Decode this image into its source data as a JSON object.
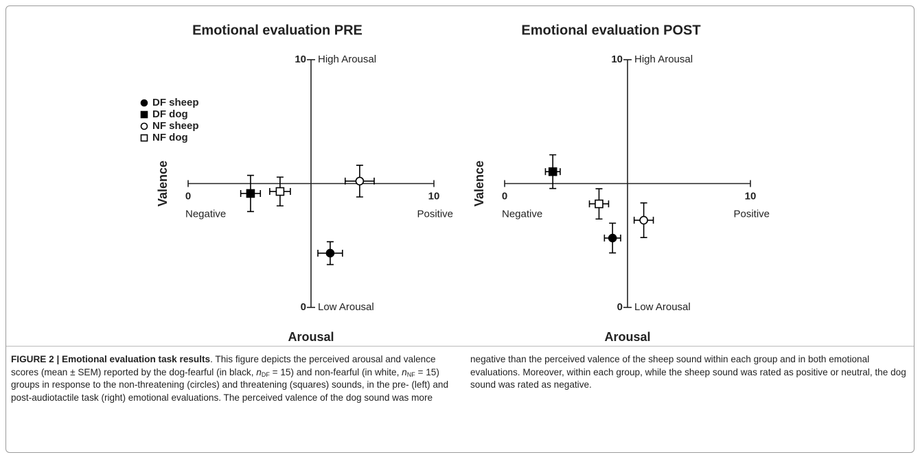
{
  "chart_data": [
    {
      "type": "scatter",
      "title": "Emotional evaluation PRE",
      "xlabel": "Valence",
      "ylabel": "Arousal",
      "x_low_label": "Negative",
      "x_high_label": "Positive",
      "y_high_label": "High Arousal",
      "y_low_label": "Low Arousal",
      "xlim": [
        0,
        10
      ],
      "xticks": [
        0,
        10
      ],
      "ylim": [
        0,
        10
      ],
      "yticks": [
        0,
        10
      ],
      "legend": "upper left",
      "series": [
        {
          "name": "DF sheep",
          "marker": "circle",
          "color": "#000000",
          "x": [
            5.78
          ],
          "values": [
            2.19
          ],
          "x_error": [
            0.5
          ],
          "y_error": [
            0.46
          ]
        },
        {
          "name": "DF dog",
          "marker": "square",
          "color": "#000000",
          "x": [
            2.54
          ],
          "values": [
            4.6
          ],
          "x_error": [
            0.4
          ],
          "y_error": [
            0.73
          ]
        },
        {
          "name": "NF sheep",
          "marker": "circle",
          "color": "#ffffff",
          "x": [
            6.98
          ],
          "values": [
            5.1
          ],
          "x_error": [
            0.59
          ],
          "y_error": [
            0.64
          ]
        },
        {
          "name": "NF dog",
          "marker": "square",
          "color": "#ffffff",
          "x": [
            3.74
          ],
          "values": [
            4.68
          ],
          "x_error": [
            0.42
          ],
          "y_error": [
            0.58
          ]
        }
      ]
    },
    {
      "type": "scatter",
      "title": "Emotional evaluation POST",
      "xlabel": "Valence",
      "ylabel": "Arousal",
      "x_low_label": "Negative",
      "x_high_label": "Positive",
      "y_high_label": "High Arousal",
      "y_low_label": "Low Arousal",
      "xlim": [
        0,
        10
      ],
      "xticks": [
        0,
        10
      ],
      "ylim": [
        0,
        10
      ],
      "yticks": [
        0,
        10
      ],
      "series": [
        {
          "marker": "circle",
          "color": "#000000",
          "x": [
            4.39
          ],
          "values": [
            2.8
          ],
          "x_error": [
            0.33
          ],
          "y_error": [
            0.6
          ]
        },
        {
          "marker": "square",
          "color": "#000000",
          "x": [
            1.96
          ],
          "values": [
            5.48
          ],
          "x_error": [
            0.3
          ],
          "y_error": [
            0.68
          ]
        },
        {
          "marker": "circle",
          "color": "#ffffff",
          "x": [
            5.66
          ],
          "values": [
            3.52
          ],
          "x_error": [
            0.39
          ],
          "y_error": [
            0.7
          ]
        },
        {
          "marker": "square",
          "color": "#ffffff",
          "x": [
            3.84
          ],
          "values": [
            4.18
          ],
          "x_error": [
            0.39
          ],
          "y_error": [
            0.61
          ]
        }
      ]
    }
  ],
  "caption": {
    "label": "FIGURE 2 | Emotional evaluation task results",
    "parts": [
      {
        "text": ". This figure depicts the perceived arousal and valence scores (mean ± SEM) reported by the dog-fearful (in black, ",
        "style": "normal"
      },
      {
        "text": "n",
        "style": "italic"
      },
      {
        "text": "DF",
        "style": "sub"
      },
      {
        "text": " = 15) and non-fearful (in white, ",
        "style": "normal"
      },
      {
        "text": "n",
        "style": "italic"
      },
      {
        "text": "NF",
        "style": "sub"
      },
      {
        "text": " = 15) groups in response to the non-threatening (circles) and threatening (squares) sounds, in the pre- (left) and post-audiotactile task (right) emotional evaluations. The perceived valence of the dog sound was more negative than the perceived valence of the sheep sound within each group and in both emotional evaluations. Moreover, within each group, while the sheep sound was rated as positive or neutral, the dog sound was rated as negative.",
        "style": "normal"
      }
    ]
  }
}
